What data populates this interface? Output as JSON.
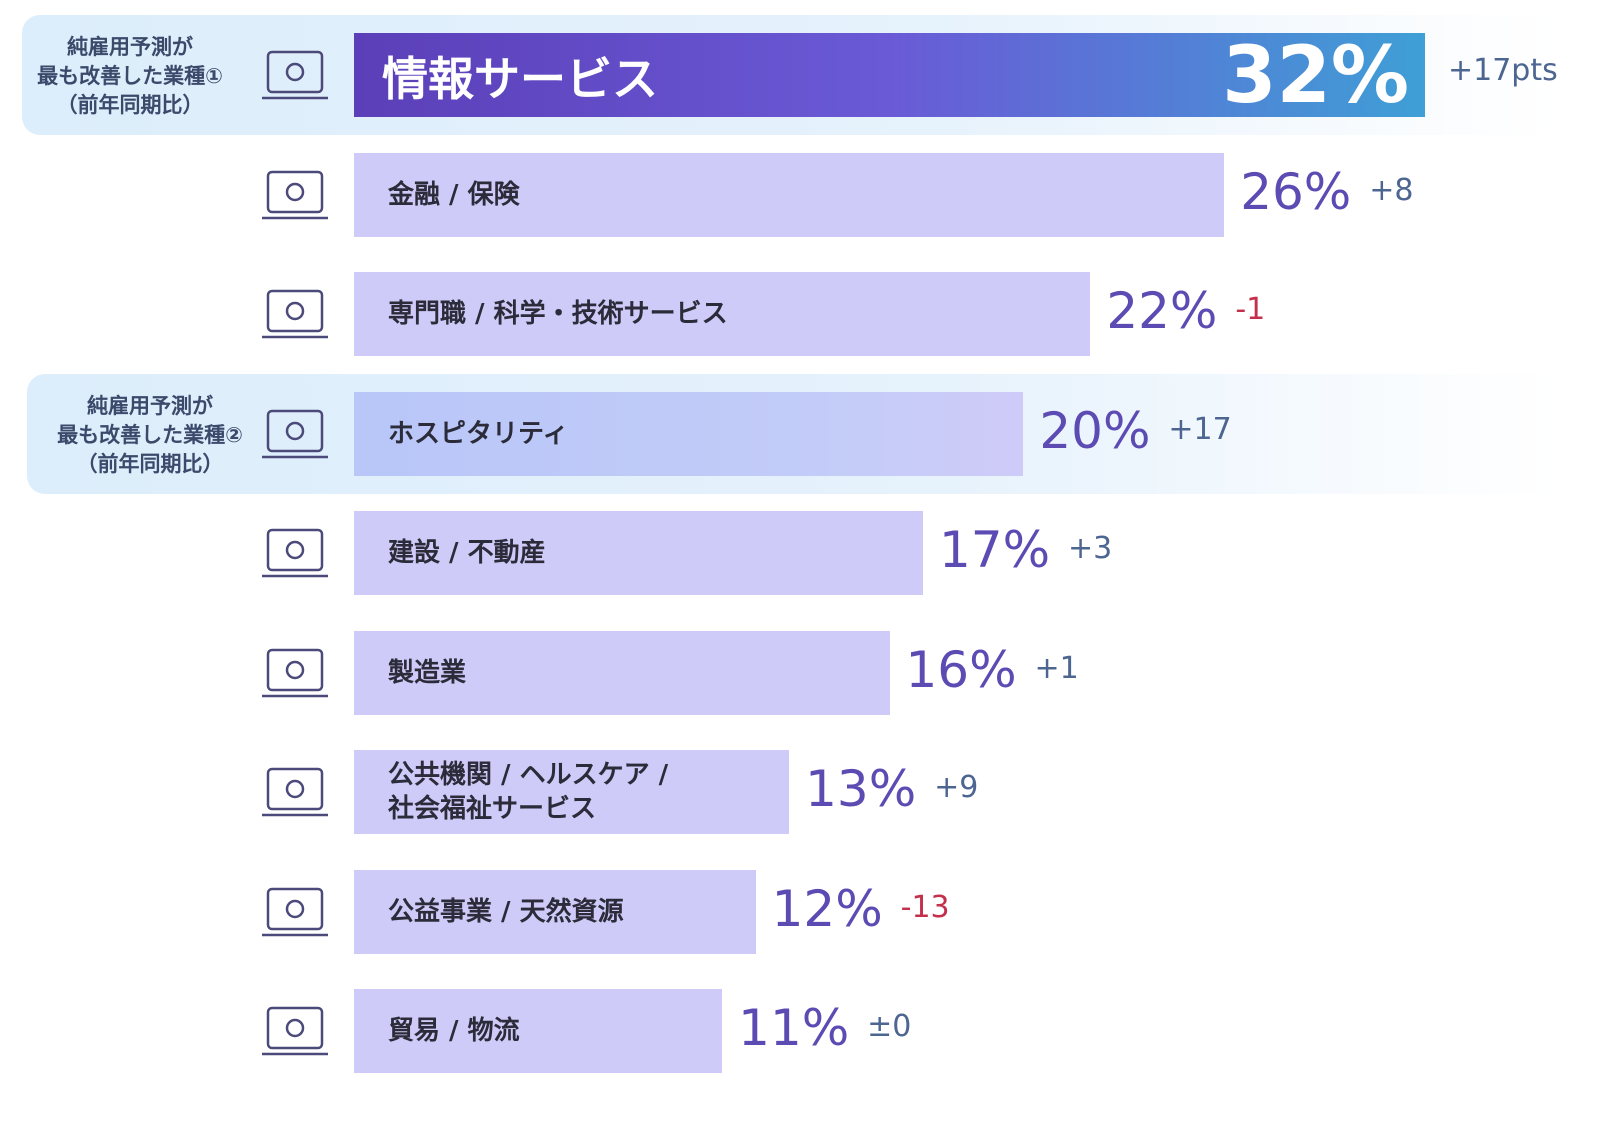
{
  "chart_data": {
    "type": "bar",
    "categories": [
      "情報サービス",
      "金融 / 保険",
      "専門職 / 科学・技術サービス",
      "ホスピタリティ",
      "建設 / 不動産",
      "製造業",
      "公共機関 / ヘルスケア /\n社会福祉サービス",
      "公益事業 / 天然資源",
      "貿易 / 物流"
    ],
    "values": [
      32,
      26,
      22,
      20,
      17,
      16,
      13,
      12,
      11
    ],
    "value_labels": [
      "32%",
      "26%",
      "22%",
      "20%",
      "17%",
      "16%",
      "13%",
      "12%",
      "11%"
    ],
    "changes": [
      17,
      8,
      -1,
      17,
      3,
      1,
      9,
      -13,
      0
    ],
    "change_labels": [
      "+17pts",
      "+8",
      "-1",
      "+17",
      "+3",
      "+1",
      "+9",
      "-13",
      "±0"
    ],
    "color": "#cfcbf8",
    "annotations": [
      {
        "category": "情報サービス",
        "lines": [
          "純雇用予測が",
          "最も改善した業種①",
          "（前年同期比）"
        ]
      },
      {
        "category": "ホスピタリティ",
        "lines": [
          "純雇用予測が",
          "最も改善した業種②",
          "（前年同期比）"
        ]
      }
    ]
  }
}
